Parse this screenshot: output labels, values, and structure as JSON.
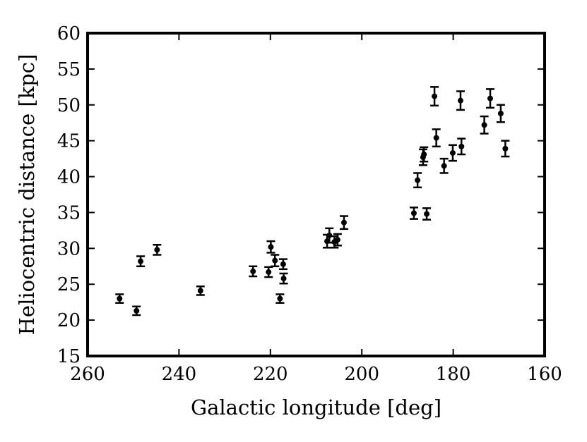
{
  "chart_data": {
    "type": "scatter",
    "title": "",
    "xlabel": "Galactic longitude [deg]",
    "ylabel": "Heliocentric distance [kpc]",
    "xlim": [
      260,
      160
    ],
    "ylim": [
      15,
      60
    ],
    "x_ticks": [
      260,
      240,
      220,
      200,
      180,
      160
    ],
    "y_ticks": [
      15,
      20,
      25,
      30,
      35,
      40,
      45,
      50,
      55,
      60
    ],
    "grid": false,
    "legend": "none",
    "marker_color": "#000000",
    "points": [
      {
        "x": 253.0,
        "y": 23.0,
        "err": 0.6
      },
      {
        "x": 249.3,
        "y": 21.3,
        "err": 0.6
      },
      {
        "x": 248.4,
        "y": 28.2,
        "err": 0.7
      },
      {
        "x": 244.8,
        "y": 29.8,
        "err": 0.7
      },
      {
        "x": 235.3,
        "y": 24.1,
        "err": 0.6
      },
      {
        "x": 223.8,
        "y": 26.8,
        "err": 0.7
      },
      {
        "x": 220.4,
        "y": 26.7,
        "err": 0.7
      },
      {
        "x": 219.9,
        "y": 30.2,
        "err": 0.8
      },
      {
        "x": 219.0,
        "y": 28.3,
        "err": 0.8
      },
      {
        "x": 217.9,
        "y": 23.0,
        "err": 0.6
      },
      {
        "x": 217.2,
        "y": 27.8,
        "err": 0.7
      },
      {
        "x": 217.1,
        "y": 25.8,
        "err": 0.7
      },
      {
        "x": 207.6,
        "y": 31.0,
        "err": 0.9
      },
      {
        "x": 207.1,
        "y": 31.8,
        "err": 1.0
      },
      {
        "x": 206.0,
        "y": 30.9,
        "err": 0.8
      },
      {
        "x": 205.3,
        "y": 31.2,
        "err": 0.8
      },
      {
        "x": 203.9,
        "y": 33.6,
        "err": 0.9
      },
      {
        "x": 188.6,
        "y": 34.9,
        "err": 0.8
      },
      {
        "x": 187.8,
        "y": 39.5,
        "err": 1.0
      },
      {
        "x": 186.6,
        "y": 42.7,
        "err": 1.1
      },
      {
        "x": 186.4,
        "y": 43.1,
        "err": 1.0
      },
      {
        "x": 185.8,
        "y": 34.8,
        "err": 0.8
      },
      {
        "x": 184.1,
        "y": 51.2,
        "err": 1.3
      },
      {
        "x": 183.7,
        "y": 45.4,
        "err": 1.2
      },
      {
        "x": 182.0,
        "y": 41.5,
        "err": 1.0
      },
      {
        "x": 180.1,
        "y": 43.3,
        "err": 1.1
      },
      {
        "x": 178.4,
        "y": 50.6,
        "err": 1.3
      },
      {
        "x": 178.2,
        "y": 44.2,
        "err": 1.1
      },
      {
        "x": 173.2,
        "y": 47.2,
        "err": 1.2
      },
      {
        "x": 171.9,
        "y": 50.9,
        "err": 1.3
      },
      {
        "x": 169.6,
        "y": 48.8,
        "err": 1.2
      },
      {
        "x": 168.6,
        "y": 43.9,
        "err": 1.1
      }
    ]
  }
}
